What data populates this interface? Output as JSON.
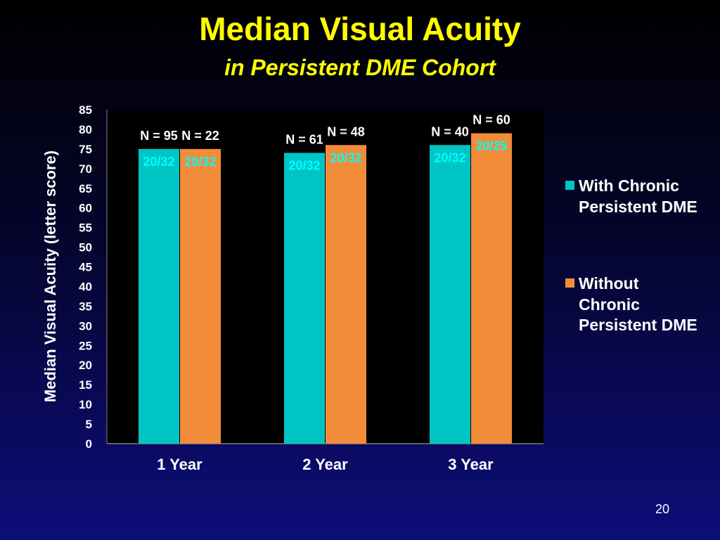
{
  "slide": {
    "title": "Median Visual Acuity",
    "subtitle": "in Persistent DME Cohort",
    "page_number": "20"
  },
  "colors": {
    "title": "#ffff00",
    "series_with": "#00c5c5",
    "series_without": "#f28c38",
    "plot_background": "#000000",
    "snellen_label": "#00ffff"
  },
  "chart_data": {
    "type": "bar",
    "title": "",
    "xlabel": "",
    "ylabel": "Median Visual Acuity (letter score)",
    "ylim": [
      0,
      85
    ],
    "ytick_step": 5,
    "categories": [
      "1 Year",
      "2 Year",
      "3 Year"
    ],
    "legend_position": "right",
    "series": [
      {
        "name": "With Chronic Persistent DME",
        "values": [
          75,
          74,
          76
        ],
        "n_labels": [
          "N = 95",
          "N = 61",
          "N = 40"
        ],
        "snellen_labels": [
          "20/32",
          "20/32",
          "20/32"
        ]
      },
      {
        "name": "Without Chronic Persistent DME",
        "values": [
          75,
          76,
          79
        ],
        "n_labels": [
          "N = 22",
          "N = 48",
          "N = 60"
        ],
        "snellen_labels": [
          "20/32",
          "20/32",
          "20/25"
        ]
      }
    ]
  }
}
